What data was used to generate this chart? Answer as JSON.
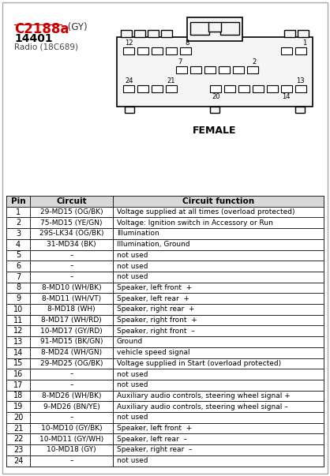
{
  "title": "C2188a",
  "title_suffix": " (GY)",
  "connector_id": "14401",
  "connector_sub": "Radio (18C689)",
  "female_label": "FEMALE",
  "bg_color": "#ffffff",
  "border_color": "#000000",
  "title_color": "#cc0000",
  "table_header": [
    "Pin",
    "Circuit",
    "Circuit function"
  ],
  "rows": [
    [
      "1",
      "29-MD15 (OG/BK)",
      "Voltage supplied at all times (overload protected)"
    ],
    [
      "2",
      "75-MD15 (YE/GN)",
      "Voltage: Ignition switch in Accessory or Run"
    ],
    [
      "3",
      "29S-LK34 (OG/BK)",
      "Illumination"
    ],
    [
      "4",
      "31-MD34 (BK)",
      "Illumination, Ground"
    ],
    [
      "5",
      "–",
      "not used"
    ],
    [
      "6",
      "–",
      "not used"
    ],
    [
      "7",
      "–",
      "not used"
    ],
    [
      "8",
      "8-MD10 (WH/BK)",
      "Speaker, left front  +"
    ],
    [
      "9",
      "8-MD11 (WH/VT)",
      "Speaker, left rear  +"
    ],
    [
      "10",
      "8-MD18 (WH)",
      "Speaker, right rear  +"
    ],
    [
      "11",
      "8-MD17 (WH/RD)",
      "Speaker, right front  +"
    ],
    [
      "12",
      "10-MD17 (GY/RD)",
      "Speaker, right front  –"
    ],
    [
      "13",
      "91-MD15 (BK/GN)",
      "Ground"
    ],
    [
      "14",
      "8-MD24 (WH/GN)",
      "vehicle speed signal"
    ],
    [
      "15",
      "29-MD25 (OG/BK)",
      "Voltage supplied in Start (overload protected)"
    ],
    [
      "16",
      "–",
      "not used"
    ],
    [
      "17",
      "–",
      "not used"
    ],
    [
      "18",
      "8-MD26 (WH/BK)",
      "Auxiliary audio controls, steering wheel signal +"
    ],
    [
      "19",
      "9-MD26 (BN/YE)",
      "Auxiliary audio controls, steering wheel signal –"
    ],
    [
      "20",
      "–",
      "not used"
    ],
    [
      "21",
      "10-MD10 (GY/BK)",
      "Speaker, left front  +"
    ],
    [
      "22",
      "10-MD11 (GY/WH)",
      "Speaker, left rear  –"
    ],
    [
      "23",
      "10-MD18 (GY)",
      "Speaker, right rear  –"
    ],
    [
      "24",
      "–",
      "not used"
    ]
  ]
}
